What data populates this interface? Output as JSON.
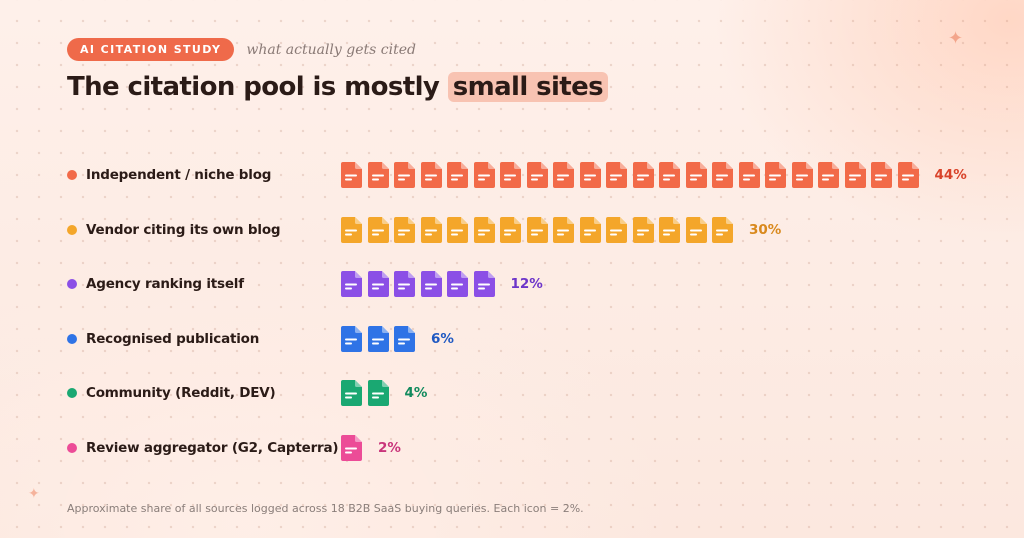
{
  "header": {
    "badge": "AI CITATION STUDY",
    "tagline": "what actually gets cited"
  },
  "title": {
    "main": "The citation pool is mostly",
    "highlight": "small sites"
  },
  "chart_data": {
    "type": "bar",
    "unit_per_icon": 2,
    "categories": [
      "Independent / niche blog",
      "Vendor citing its own blog",
      "Agency ranking itself",
      "Recognised publication",
      "Community (Reddit, DEV)",
      "Review aggregator (G2, Capterra)"
    ],
    "values": [
      44,
      30,
      12,
      6,
      4,
      2
    ],
    "value_labels": [
      "44%",
      "30%",
      "12%",
      "6%",
      "4%",
      "2%"
    ],
    "colors": [
      "#f26a48",
      "#f4a62a",
      "#8b4fe6",
      "#2f73e6",
      "#1aa872",
      "#ec4c97"
    ],
    "label_colors": [
      "#d9432a",
      "#d9891d",
      "#6d35c9",
      "#1f59c2",
      "#118a5d",
      "#c9357b"
    ]
  },
  "footnote": "Approximate share of all sources logged across 18 B2B SaaS buying queries. Each icon = 2%."
}
